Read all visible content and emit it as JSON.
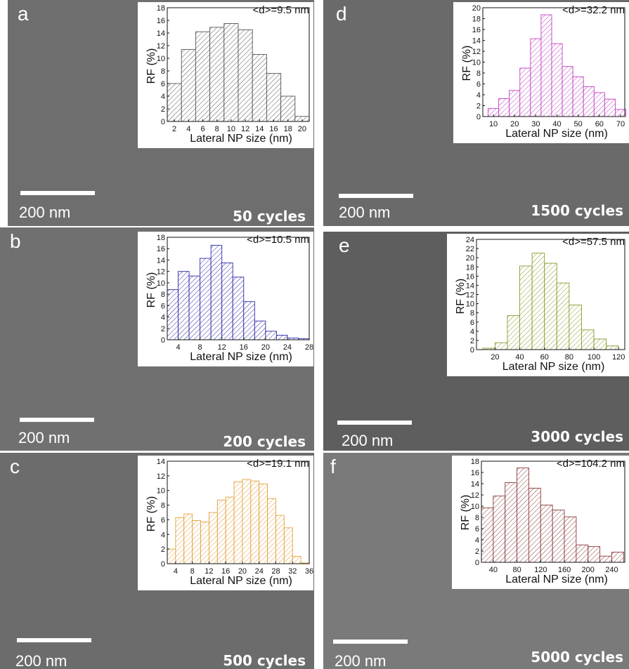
{
  "panels": [
    {
      "id": "a",
      "label": "a",
      "scale": "200 nm",
      "cycles": "50 cycles",
      "mean": "<d>=9.5 nm"
    },
    {
      "id": "b",
      "label": "b",
      "scale": "200 nm",
      "cycles": "200 cycles",
      "mean": "<d>=10.5 nm"
    },
    {
      "id": "c",
      "label": "c",
      "scale": "200 nm",
      "cycles": "500 cycles",
      "mean": "<d>=19.1 nm"
    },
    {
      "id": "d",
      "label": "d",
      "scale": "200 nm",
      "cycles": "1500 cycles",
      "mean": "<d>=32.2 nm"
    },
    {
      "id": "e",
      "label": "e",
      "scale": "200 nm",
      "cycles": "3000 cycles",
      "mean": "<d>=57.5 nm"
    },
    {
      "id": "f",
      "label": "f",
      "scale": "200 nm",
      "cycles": "5000 cycles",
      "mean": "<d>=104.2 nm"
    }
  ],
  "chart_data": [
    {
      "type": "bar",
      "panel": "a",
      "annotation": "<d>=9.5 nm",
      "xlabel": "Lateral NP size (nm)",
      "ylabel": "RF (%)",
      "color": "#555555",
      "bin_edges": [
        1,
        3,
        5,
        7,
        9,
        11,
        13,
        15,
        17,
        19,
        21
      ],
      "values": [
        6.0,
        11.4,
        14.2,
        14.9,
        15.5,
        14.5,
        10.6,
        7.6,
        4.0,
        0.8
      ],
      "xticks": [
        2,
        4,
        6,
        8,
        10,
        12,
        14,
        16,
        18,
        20
      ],
      "xlim": [
        1,
        21
      ],
      "yticks": [
        0,
        2,
        4,
        6,
        8,
        10,
        12,
        14,
        16,
        18
      ],
      "ylim": [
        0,
        18
      ]
    },
    {
      "type": "bar",
      "panel": "b",
      "annotation": "<d>=10.5 nm",
      "xlabel": "Lateral NP size (nm)",
      "ylabel": "RF (%)",
      "color": "#2a2aa8",
      "bin_edges": [
        2,
        4,
        6,
        8,
        10,
        12,
        14,
        16,
        18,
        20,
        22,
        24,
        26,
        28
      ],
      "values": [
        8.8,
        12.0,
        11.2,
        14.3,
        16.6,
        13.5,
        11.0,
        6.7,
        3.3,
        1.5,
        0.8,
        0.3,
        0.2
      ],
      "xticks": [
        4,
        8,
        12,
        16,
        20,
        24,
        28
      ],
      "xlim": [
        2,
        28
      ],
      "yticks": [
        0,
        2,
        4,
        6,
        8,
        10,
        12,
        14,
        16,
        18
      ],
      "ylim": [
        0,
        18
      ]
    },
    {
      "type": "bar",
      "panel": "c",
      "annotation": "<d>=19.1 nm",
      "xlabel": "Lateral NP size (nm)",
      "ylabel": "RF (%)",
      "color": "#e3a03a",
      "bin_edges": [
        2,
        4,
        6,
        8,
        10,
        12,
        14,
        16,
        18,
        20,
        22,
        24,
        26,
        28,
        30,
        32,
        34,
        36
      ],
      "values": [
        2.0,
        6.3,
        6.8,
        5.9,
        5.7,
        7.0,
        8.7,
        9.1,
        11.2,
        11.5,
        11.3,
        10.9,
        8.9,
        6.6,
        4.9,
        1.0,
        0.1
      ],
      "xticks": [
        4,
        8,
        12,
        16,
        20,
        24,
        28,
        32,
        36
      ],
      "xlim": [
        2,
        36
      ],
      "yticks": [
        0,
        2,
        4,
        6,
        8,
        10,
        12,
        14
      ],
      "ylim": [
        0,
        14
      ]
    },
    {
      "type": "bar",
      "panel": "d",
      "annotation": "<d>=32.2 nm",
      "xlabel": "Lateral NP size (nm)",
      "ylabel": "RF (%)",
      "color": "#c040c0",
      "bin_edges": [
        7.5,
        12.5,
        17.5,
        22.5,
        27.5,
        32.5,
        37.5,
        42.5,
        47.5,
        52.5,
        57.5,
        62.5,
        67.5,
        72.5
      ],
      "values": [
        1.5,
        3.3,
        4.8,
        8.9,
        14.3,
        18.7,
        13.4,
        9.2,
        7.3,
        5.5,
        4.4,
        3.2,
        1.3
      ],
      "xticks": [
        10,
        20,
        30,
        40,
        50,
        60,
        70
      ],
      "xlim": [
        5,
        72
      ],
      "yticks": [
        0,
        2,
        4,
        6,
        8,
        10,
        12,
        14,
        16,
        18,
        20
      ],
      "ylim": [
        0,
        20
      ]
    },
    {
      "type": "bar",
      "panel": "e",
      "annotation": "<d>=57.5 nm",
      "xlabel": "Lateral NP size (nm)",
      "ylabel": "RF (%)",
      "color": "#8a9a2a",
      "bin_edges": [
        10,
        20,
        30,
        40,
        50,
        60,
        70,
        80,
        90,
        100,
        110,
        120
      ],
      "values": [
        0.3,
        1.5,
        7.4,
        18.2,
        21.0,
        18.8,
        14.5,
        9.7,
        4.3,
        2.3,
        0.8
      ],
      "xticks": [
        20,
        40,
        60,
        80,
        100,
        120
      ],
      "xlim": [
        5,
        125
      ],
      "yticks": [
        0,
        2,
        4,
        6,
        8,
        10,
        12,
        14,
        16,
        18,
        20,
        22,
        24
      ],
      "ylim": [
        0,
        24
      ]
    },
    {
      "type": "bar",
      "panel": "f",
      "annotation": "<d>=104.2 nm",
      "xlabel": "Lateral NP size (nm)",
      "ylabel": "RF (%)",
      "color": "#8a3a3a",
      "bin_edges": [
        20,
        40,
        60,
        80,
        100,
        120,
        140,
        160,
        180,
        200,
        220,
        240,
        260
      ],
      "values": [
        9.7,
        11.8,
        14.2,
        16.8,
        13.2,
        10.2,
        9.3,
        8.1,
        3.1,
        2.8,
        1.1,
        1.8
      ],
      "xticks": [
        40,
        80,
        120,
        160,
        200,
        240
      ],
      "xlim": [
        20,
        262
      ],
      "yticks": [
        0,
        2,
        4,
        6,
        8,
        10,
        12,
        14,
        16,
        18
      ],
      "ylim": [
        0,
        18
      ]
    }
  ]
}
